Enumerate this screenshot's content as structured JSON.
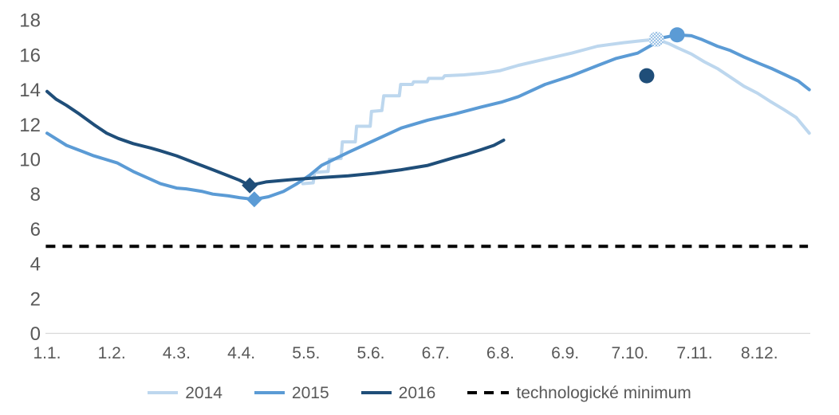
{
  "chart_data": {
    "type": "line",
    "title": "",
    "xlabel": "",
    "ylabel": "",
    "ylim": [
      0,
      18
    ],
    "y_ticks": [
      0,
      2,
      4,
      6,
      8,
      10,
      12,
      14,
      16,
      18
    ],
    "x_tick_labels": [
      "1.1.",
      "1.2.",
      "4.3.",
      "4.4.",
      "5.5.",
      "5.6.",
      "6.7.",
      "6.8.",
      "6.9.",
      "7.10.",
      "7.11.",
      "8.12."
    ],
    "x_unit": "tick-index (0 = 1.1., 11 = 8.12.)",
    "grid": "none",
    "axis_line_color": "#d9d9d9",
    "text_color": "#595959",
    "legend_position": "bottom",
    "series": [
      {
        "name": "2014",
        "color": "#bdd7ee",
        "style": "solid",
        "points": [
          [
            3.95,
            8.6
          ],
          [
            4.11,
            8.65
          ],
          [
            4.13,
            9.25
          ],
          [
            4.34,
            9.3
          ],
          [
            4.36,
            10.0
          ],
          [
            4.54,
            10.05
          ],
          [
            4.56,
            11.0
          ],
          [
            4.76,
            11.0
          ],
          [
            4.78,
            11.9
          ],
          [
            4.99,
            11.9
          ],
          [
            5.01,
            12.75
          ],
          [
            5.17,
            12.8
          ],
          [
            5.2,
            13.65
          ],
          [
            5.44,
            13.65
          ],
          [
            5.46,
            14.3
          ],
          [
            5.64,
            14.3
          ],
          [
            5.66,
            14.45
          ],
          [
            5.87,
            14.45
          ],
          [
            5.89,
            14.65
          ],
          [
            6.11,
            14.65
          ],
          [
            6.14,
            14.8
          ],
          [
            6.44,
            14.85
          ],
          [
            6.74,
            14.95
          ],
          [
            7.0,
            15.1
          ],
          [
            7.28,
            15.4
          ],
          [
            7.68,
            15.75
          ],
          [
            8.1,
            16.1
          ],
          [
            8.5,
            16.5
          ],
          [
            8.9,
            16.7
          ],
          [
            9.15,
            16.8
          ],
          [
            9.41,
            16.9
          ],
          [
            9.6,
            16.65
          ],
          [
            9.74,
            16.4
          ],
          [
            9.95,
            16.05
          ],
          [
            10.15,
            15.6
          ],
          [
            10.36,
            15.2
          ],
          [
            10.56,
            14.7
          ],
          [
            10.76,
            14.2
          ],
          [
            10.97,
            13.8
          ],
          [
            11.18,
            13.3
          ],
          [
            11.38,
            12.85
          ],
          [
            11.57,
            12.4
          ],
          [
            11.77,
            11.5
          ]
        ],
        "markers": [
          {
            "shape": "circle",
            "t": 9.41,
            "v": 16.9,
            "pattern": "stipple"
          }
        ]
      },
      {
        "name": "2015",
        "color": "#5b9bd5",
        "style": "solid",
        "points": [
          [
            0,
            11.5
          ],
          [
            0.3,
            10.8
          ],
          [
            0.55,
            10.45
          ],
          [
            0.72,
            10.2
          ],
          [
            1.08,
            9.8
          ],
          [
            1.33,
            9.3
          ],
          [
            1.6,
            8.85
          ],
          [
            1.75,
            8.6
          ],
          [
            2.0,
            8.35
          ],
          [
            2.15,
            8.3
          ],
          [
            2.4,
            8.15
          ],
          [
            2.56,
            8.0
          ],
          [
            2.8,
            7.9
          ],
          [
            2.97,
            7.8
          ],
          [
            3.2,
            7.7
          ],
          [
            3.42,
            7.85
          ],
          [
            3.65,
            8.15
          ],
          [
            3.86,
            8.6
          ],
          [
            4.06,
            9.1
          ],
          [
            4.24,
            9.65
          ],
          [
            4.65,
            10.4
          ],
          [
            5.06,
            11.1
          ],
          [
            5.47,
            11.8
          ],
          [
            5.88,
            12.25
          ],
          [
            6.29,
            12.6
          ],
          [
            6.7,
            13.0
          ],
          [
            7.03,
            13.3
          ],
          [
            7.28,
            13.6
          ],
          [
            7.69,
            14.3
          ],
          [
            8.1,
            14.8
          ],
          [
            8.51,
            15.4
          ],
          [
            8.79,
            15.8
          ],
          [
            9.12,
            16.1
          ],
          [
            9.33,
            16.55
          ],
          [
            9.53,
            17.0
          ],
          [
            9.73,
            17.15
          ],
          [
            9.95,
            17.1
          ],
          [
            10.1,
            16.9
          ],
          [
            10.35,
            16.5
          ],
          [
            10.55,
            16.25
          ],
          [
            10.75,
            15.9
          ],
          [
            11.0,
            15.5
          ],
          [
            11.2,
            15.2
          ],
          [
            11.4,
            14.85
          ],
          [
            11.6,
            14.5
          ],
          [
            11.77,
            14.0
          ]
        ],
        "markers": [
          {
            "shape": "diamond",
            "t": 3.2,
            "v": 7.7
          },
          {
            "shape": "circle",
            "t": 9.73,
            "v": 17.15
          }
        ]
      },
      {
        "name": "2016",
        "color": "#1f4e79",
        "style": "solid",
        "points": [
          [
            0,
            13.9
          ],
          [
            0.14,
            13.45
          ],
          [
            0.3,
            13.1
          ],
          [
            0.5,
            12.6
          ],
          [
            0.72,
            12.0
          ],
          [
            0.92,
            11.5
          ],
          [
            1.1,
            11.2
          ],
          [
            1.33,
            10.9
          ],
          [
            1.6,
            10.65
          ],
          [
            1.74,
            10.5
          ],
          [
            2.0,
            10.2
          ],
          [
            2.14,
            10.0
          ],
          [
            2.35,
            9.7
          ],
          [
            2.56,
            9.4
          ],
          [
            2.77,
            9.1
          ],
          [
            2.97,
            8.8
          ],
          [
            3.13,
            8.5
          ],
          [
            3.38,
            8.7
          ],
          [
            3.83,
            8.85
          ],
          [
            4.24,
            8.95
          ],
          [
            4.65,
            9.05
          ],
          [
            5.06,
            9.2
          ],
          [
            5.47,
            9.4
          ],
          [
            5.88,
            9.65
          ],
          [
            6.29,
            10.1
          ],
          [
            6.49,
            10.3
          ],
          [
            6.7,
            10.55
          ],
          [
            6.9,
            10.8
          ],
          [
            7.05,
            11.1
          ]
        ],
        "markers": [
          {
            "shape": "diamond",
            "t": 3.13,
            "v": 8.5
          },
          {
            "shape": "circle",
            "t": 9.26,
            "v": 14.8,
            "detached": true
          }
        ]
      },
      {
        "name": "technologické minimum",
        "color": "#000000",
        "style": "dashed",
        "points": [
          [
            -0.02,
            5
          ],
          [
            11.75,
            5
          ]
        ],
        "markers": []
      }
    ],
    "legend": [
      {
        "label": "2014",
        "color": "#bdd7ee",
        "dashed": false
      },
      {
        "label": "2015",
        "color": "#5b9bd5",
        "dashed": false
      },
      {
        "label": "2016",
        "color": "#1f4e79",
        "dashed": false
      },
      {
        "label": "technologické minimum",
        "color": "#000000",
        "dashed": true
      }
    ]
  }
}
